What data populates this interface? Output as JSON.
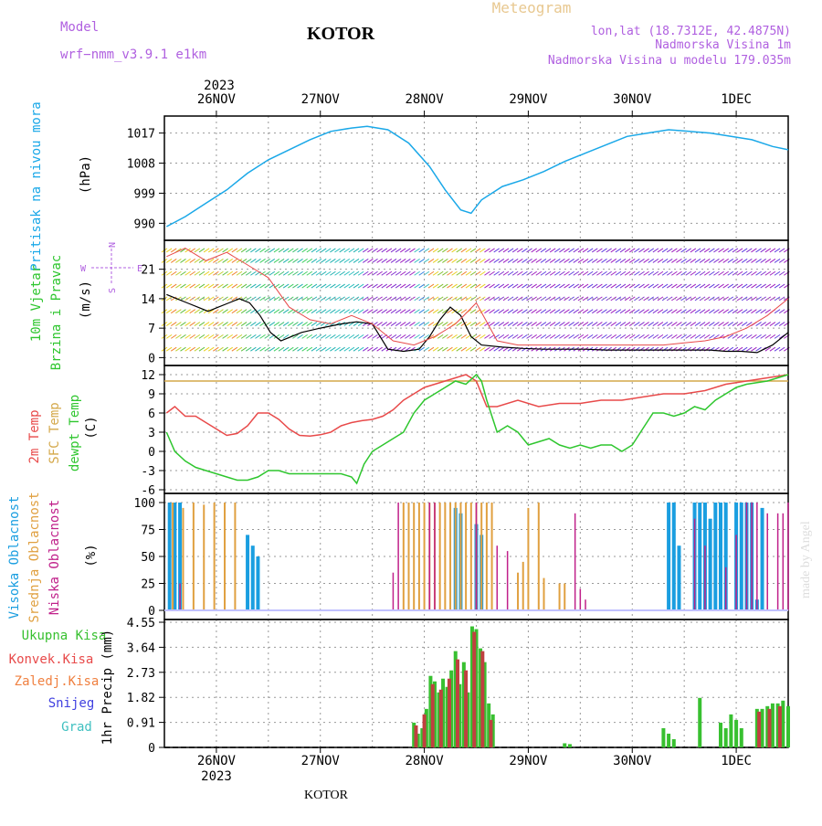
{
  "header": {
    "model_label": "Model",
    "model_name": "wrf−nmm_v3.9.1  e1km",
    "location": "KOTOR",
    "meteogram_label": "Meteogram",
    "lonlat": "lon,lat (18.7312E, 42.4875N)",
    "altitude": "Nadmorska Visina 1m",
    "model_altitude": "Nadmorska Visina u modelu 179.035m",
    "footer_location": "KOTOR",
    "watermark": "made by Angel"
  },
  "colors": {
    "pressure": "#1aa8e8",
    "temp2m": "#e84a4a",
    "sfc_temp": "#d4a84a",
    "dewpoint": "#2ec62e",
    "cloud_high": "#1a9ee0",
    "cloud_mid": "#e0a040",
    "cloud_low": "#c0208a",
    "precip_total": "#38c030",
    "precip_conv": "#c04040",
    "precip_frozen": "#f08040",
    "snow": "#4040e0",
    "hail": "#40c0c0",
    "purple_text": "#b060e0",
    "orange_text": "#e8c890"
  },
  "chart_data": [
    {
      "type": "line",
      "id": "pressure",
      "ylabel": "Pritisak na nivou mora",
      "unit": "(hPa)",
      "ylim": [
        986,
        1021
      ],
      "yticks": [
        990,
        999,
        1008,
        1017
      ],
      "x_ticks_top": [
        "26NOV",
        "27NOV",
        "28NOV",
        "29NOV",
        "30NOV",
        "1DEC"
      ],
      "x_year_top": "2023",
      "x_range_days": [
        -0.5,
        5.5
      ],
      "series": [
        {
          "x": [
            -0.48,
            -0.3,
            -0.1,
            0.1,
            0.3,
            0.5,
            0.7,
            0.9,
            1.1,
            1.3,
            1.45,
            1.65,
            1.85,
            2.05,
            2.2,
            2.35,
            2.45,
            2.55,
            2.75,
            2.95,
            3.15,
            3.35,
            3.55,
            3.75,
            3.95,
            4.15,
            4.35,
            4.55,
            4.75,
            4.95,
            5.15,
            5.35,
            5.5
          ],
          "y": [
            989,
            992,
            996,
            1000,
            1005,
            1009,
            1012,
            1015,
            1017.5,
            1018.5,
            1019,
            1018,
            1014,
            1007,
            1000,
            994,
            993,
            997,
            1001,
            1003,
            1005.5,
            1008.5,
            1011,
            1013.5,
            1016,
            1017,
            1018,
            1017.5,
            1017,
            1016,
            1015,
            1013,
            1012
          ]
        }
      ]
    },
    {
      "type": "line",
      "id": "wind",
      "ylabel1": "10m Vjetar",
      "ylabel2": "Brzina i Pravac",
      "unit": "(m/s)",
      "compass": {
        "n": "N",
        "s": "S",
        "e": "E",
        "w": "W"
      },
      "ylim": [
        -1,
        27
      ],
      "yticks": [
        0,
        7,
        14,
        21
      ],
      "series": [
        {
          "x": [
            -0.48,
            -0.38,
            -0.28,
            -0.18,
            -0.08,
            0.02,
            0.12,
            0.22,
            0.32,
            0.42,
            0.52,
            0.62,
            0.72,
            0.82,
            1.0,
            1.2,
            1.35,
            1.5,
            1.65,
            1.8,
            1.95,
            2.05,
            2.15,
            2.25,
            2.35,
            2.45,
            2.55,
            2.75,
            2.95,
            3.15,
            3.35,
            3.55,
            3.75,
            3.95,
            4.15,
            4.35,
            4.55,
            4.75,
            4.9,
            5.05,
            5.2,
            5.35,
            5.5
          ],
          "y": [
            15,
            14,
            13,
            12,
            11,
            12,
            13,
            14,
            13,
            10,
            6,
            4,
            5,
            6,
            7,
            8,
            8.5,
            8,
            2,
            1.5,
            2,
            5,
            9,
            12,
            10,
            5,
            3,
            2.5,
            2.2,
            2,
            2,
            2,
            1.8,
            1.8,
            1.8,
            1.8,
            1.8,
            1.8,
            1.5,
            1.5,
            1.2,
            3,
            6
          ]
        },
        {
          "x": [
            -0.48,
            -0.3,
            -0.1,
            0.1,
            0.3,
            0.5,
            0.7,
            0.9,
            1.1,
            1.3,
            1.5,
            1.7,
            1.9,
            2.1,
            2.3,
            2.5,
            2.7,
            2.9,
            3.1,
            3.3,
            3.5,
            3.7,
            3.9,
            4.1,
            4.3,
            4.5,
            4.7,
            4.9,
            5.1,
            5.3,
            5.5
          ],
          "y": [
            24,
            26,
            23,
            25,
            22,
            19,
            12,
            9,
            8,
            10,
            8,
            4,
            3,
            5,
            8,
            13,
            4,
            3,
            3,
            3,
            3,
            3,
            3,
            3,
            3,
            3.5,
            4,
            5,
            7,
            10,
            14
          ]
        }
      ]
    },
    {
      "type": "line",
      "id": "temperature",
      "ylabel1": "2m Temp",
      "ylabel2": "SFC Temp",
      "ylabel3": "dewpt Temp",
      "unit": "(C)",
      "ylim": [
        -6,
        12
      ],
      "yticks": [
        -6,
        -3,
        0,
        3,
        6,
        9,
        12
      ],
      "sfc_temp_level": 11,
      "series": [
        {
          "name": "2m Temp",
          "x": [
            -0.48,
            -0.4,
            -0.3,
            -0.2,
            -0.1,
            0.0,
            0.1,
            0.2,
            0.3,
            0.4,
            0.5,
            0.6,
            0.7,
            0.8,
            0.9,
            1.0,
            1.1,
            1.2,
            1.3,
            1.4,
            1.5,
            1.6,
            1.7,
            1.8,
            1.9,
            2.0,
            2.1,
            2.2,
            2.3,
            2.4,
            2.5,
            2.6,
            2.7,
            2.9,
            3.1,
            3.3,
            3.5,
            3.7,
            3.9,
            4.1,
            4.3,
            4.5,
            4.7,
            4.9,
            5.1,
            5.3,
            5.5
          ],
          "y": [
            6,
            7,
            5.5,
            5.5,
            4.5,
            3.5,
            2.5,
            2.8,
            4,
            6,
            6,
            5,
            3.5,
            2.5,
            2.4,
            2.6,
            3,
            4,
            4.5,
            4.8,
            5,
            5.5,
            6.5,
            8,
            9,
            10,
            10.5,
            11,
            11.5,
            12,
            11,
            7,
            7,
            8,
            7,
            7.5,
            7.5,
            8,
            8,
            8.5,
            9,
            9,
            9.5,
            10.5,
            11,
            11.5,
            12
          ]
        },
        {
          "name": "dewpt Temp",
          "x": [
            -0.48,
            -0.4,
            -0.3,
            -0.2,
            -0.1,
            0.0,
            0.1,
            0.2,
            0.3,
            0.4,
            0.5,
            0.6,
            0.7,
            0.8,
            0.9,
            1.0,
            1.1,
            1.2,
            1.3,
            1.35,
            1.42,
            1.5,
            1.6,
            1.7,
            1.8,
            1.9,
            2.0,
            2.1,
            2.2,
            2.3,
            2.4,
            2.5,
            2.55,
            2.6,
            2.7,
            2.8,
            2.9,
            3.0,
            3.1,
            3.2,
            3.3,
            3.4,
            3.5,
            3.6,
            3.7,
            3.8,
            3.9,
            4.0,
            4.1,
            4.2,
            4.3,
            4.4,
            4.5,
            4.6,
            4.7,
            4.8,
            4.9,
            5.0,
            5.1,
            5.3,
            5.5
          ],
          "y": [
            3,
            0,
            -1.5,
            -2.5,
            -3,
            -3.5,
            -4,
            -4.5,
            -4.5,
            -4,
            -3,
            -3,
            -3.5,
            -3.5,
            -3.5,
            -3.5,
            -3.5,
            -3.5,
            -4,
            -5,
            -2,
            0,
            1,
            2,
            3,
            6,
            8,
            9,
            10,
            11,
            10.5,
            12,
            11,
            8,
            3,
            4,
            3,
            1,
            1.5,
            2,
            1,
            0.5,
            1,
            0.5,
            1,
            1,
            0,
            1,
            3.5,
            6,
            6,
            5.5,
            6,
            7,
            6.5,
            8,
            9,
            10,
            10.5,
            11,
            12
          ]
        }
      ]
    },
    {
      "type": "bar",
      "id": "cloud",
      "ylabel1": "Visoka Oblacnost",
      "ylabel2": "Srednja Oblacnost",
      "ylabel3": "Niska Oblacnost",
      "unit": "(%)",
      "ylim": [
        0,
        100
      ],
      "yticks": [
        0,
        25,
        50,
        75,
        100
      ],
      "series": [
        {
          "name": "high",
          "x": [
            -0.45,
            -0.4,
            -0.35,
            0.3,
            0.35,
            0.4,
            2.3,
            2.35,
            2.5,
            2.55,
            4.35,
            4.4,
            4.45,
            4.6,
            4.65,
            4.7,
            4.75,
            4.8,
            4.85,
            4.9,
            5.0,
            5.05,
            5.1,
            5.15,
            5.2,
            5.25
          ],
          "y": [
            100,
            100,
            100,
            70,
            60,
            50,
            95,
            90,
            80,
            70,
            100,
            100,
            60,
            100,
            100,
            100,
            85,
            100,
            100,
            100,
            100,
            100,
            100,
            100,
            10,
            95
          ]
        },
        {
          "name": "mid",
          "x": [
            -0.42,
            -0.32,
            -0.22,
            -0.12,
            -0.02,
            0.08,
            0.18,
            1.8,
            1.85,
            1.9,
            1.95,
            2.0,
            2.05,
            2.1,
            2.15,
            2.2,
            2.25,
            2.3,
            2.35,
            2.4,
            2.45,
            2.5,
            2.55,
            2.6,
            2.65,
            2.9,
            2.95,
            3.0,
            3.1,
            3.15,
            3.3,
            3.35
          ],
          "y": [
            100,
            95,
            100,
            98,
            100,
            100,
            100,
            100,
            100,
            100,
            100,
            100,
            100,
            100,
            100,
            100,
            100,
            100,
            100,
            100,
            100,
            100,
            100,
            100,
            100,
            35,
            45,
            95,
            100,
            30,
            25,
            25
          ]
        },
        {
          "name": "low",
          "x": [
            -0.35,
            1.7,
            1.75,
            2.05,
            2.1,
            2.5,
            2.7,
            2.8,
            3.45,
            3.5,
            3.55,
            4.6,
            4.7,
            4.9,
            5.0,
            5.1,
            5.15,
            5.2,
            5.3,
            5.4,
            5.45,
            5.5
          ],
          "y": [
            25,
            35,
            100,
            100,
            100,
            100,
            60,
            55,
            90,
            20,
            10,
            85,
            60,
            40,
            70,
            100,
            100,
            100,
            90,
            90,
            90,
            100
          ]
        }
      ]
    },
    {
      "type": "bar",
      "id": "precip",
      "legend": [
        "Ukupna  Kisa",
        "Konvek.Kisa",
        "Zaledj.Kisa",
        "Snijeg",
        "Grad"
      ],
      "ylabel": "1hr Precip (mm)",
      "ylim": [
        0,
        4.55
      ],
      "yticks": [
        0,
        0.91,
        1.82,
        2.73,
        3.64,
        4.55
      ],
      "x_ticks_bottom": [
        "26NOV",
        "27NOV",
        "28NOV",
        "29NOV",
        "30NOV",
        "1DEC"
      ],
      "x_year_bottom": "2023",
      "series": [
        {
          "name": "Ukupna  Kisa",
          "x": [
            1.9,
            1.94,
            1.98,
            2.02,
            2.06,
            2.1,
            2.14,
            2.18,
            2.22,
            2.26,
            2.3,
            2.34,
            2.38,
            2.42,
            2.46,
            2.5,
            2.54,
            2.58,
            2.62,
            2.66,
            3.35,
            3.4,
            4.3,
            4.35,
            4.4,
            4.65,
            4.85,
            4.9,
            4.95,
            5.0,
            5.05,
            5.2,
            5.25,
            5.3,
            5.35,
            5.4,
            5.45,
            5.5
          ],
          "y": [
            0.9,
            0.5,
            0.7,
            1.4,
            2.6,
            2.4,
            2.0,
            2.5,
            2.2,
            2.8,
            3.5,
            2.3,
            3.1,
            2.0,
            4.4,
            4.3,
            3.6,
            3.1,
            1.6,
            1.2,
            0.15,
            0.12,
            0.7,
            0.5,
            0.3,
            1.8,
            0.9,
            0.7,
            1.2,
            1.0,
            0.7,
            1.4,
            1.4,
            1.5,
            1.6,
            1.6,
            1.7,
            1.5
          ]
        },
        {
          "name": "Konvek.Kisa",
          "x": [
            1.92,
            2.0,
            2.08,
            2.16,
            2.24,
            2.32,
            2.4,
            2.48,
            2.56,
            2.64,
            5.22,
            5.32,
            5.42
          ],
          "y": [
            0.8,
            1.2,
            2.3,
            2.1,
            2.5,
            3.2,
            2.8,
            4.2,
            3.5,
            1.0,
            1.3,
            1.4,
            1.5
          ]
        }
      ]
    }
  ]
}
